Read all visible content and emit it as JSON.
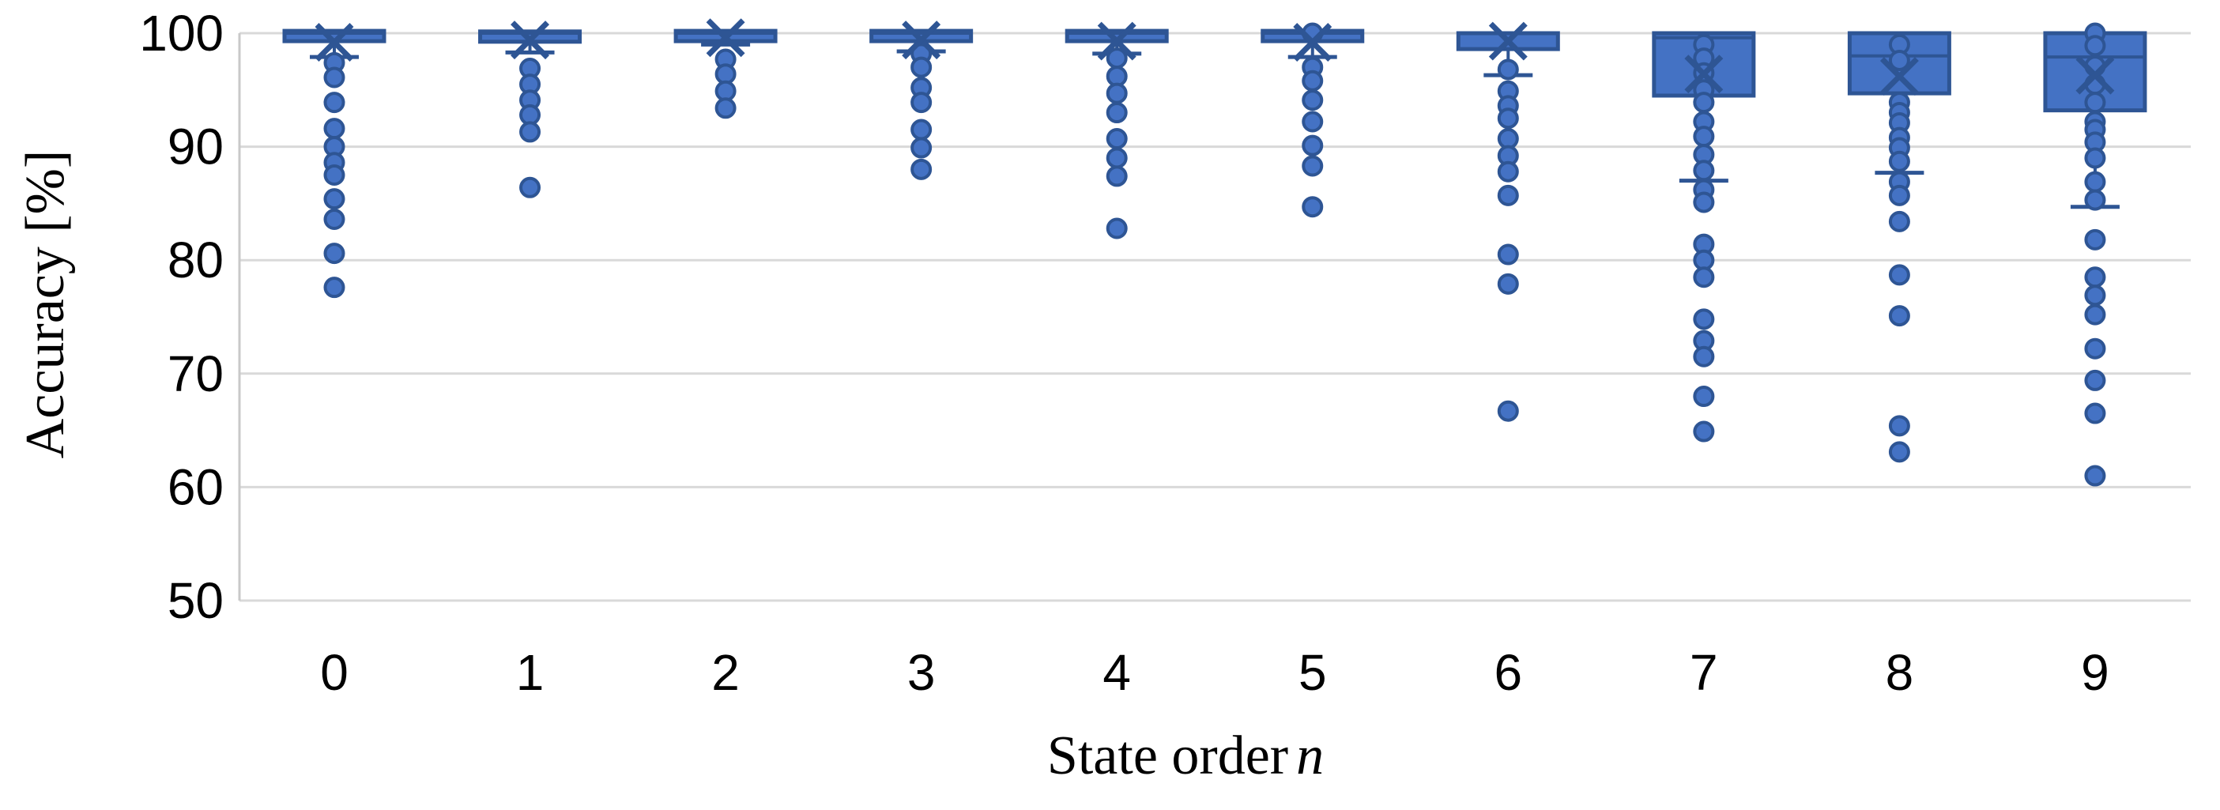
{
  "chart_data": {
    "type": "boxplot",
    "title": "",
    "xlabel": "State order",
    "xlabel_variable": "n",
    "ylabel": "Accuracy [%]",
    "ylim": [
      50,
      100
    ],
    "y_ticks": [
      50,
      60,
      70,
      80,
      90,
      100
    ],
    "grid": "horizontal",
    "legend": "none",
    "colors": {
      "box_fill": "#4472C4",
      "box_edge": "#2E5594",
      "gridline": "#D9D9D9",
      "axis_line": "#C9C9C9",
      "text": "#000000"
    },
    "categories": [
      {
        "n": "0",
        "q1": 99.5,
        "median": 100,
        "q3": 100,
        "mean": 99.2,
        "whisker_low": 97.9,
        "whisker_high": 100,
        "outliers": [
          97.4,
          96.1,
          93.9,
          91.6,
          90.0,
          88.6,
          87.5,
          85.4,
          83.6,
          80.6,
          77.6
        ]
      },
      {
        "n": "1",
        "q1": 99.4,
        "median": 100,
        "q3": 100,
        "mean": 99.4,
        "whisker_low": 98.3,
        "whisker_high": 100,
        "outliers": [
          96.9,
          95.5,
          94.1,
          92.8,
          91.3,
          86.4
        ]
      },
      {
        "n": "2",
        "q1": 99.5,
        "median": 100,
        "q3": 100,
        "mean": 99.6,
        "whisker_low": 99.0,
        "whisker_high": 100,
        "outliers": [
          97.7,
          96.4,
          94.9,
          93.4
        ]
      },
      {
        "n": "3",
        "q1": 99.5,
        "median": 100,
        "q3": 100,
        "mean": 99.4,
        "whisker_low": 98.4,
        "whisker_high": 100,
        "outliers": [
          98.2,
          97.0,
          95.2,
          93.9,
          91.5,
          89.9,
          88.0
        ]
      },
      {
        "n": "4",
        "q1": 99.5,
        "median": 100,
        "q3": 100,
        "mean": 99.3,
        "whisker_low": 98.2,
        "whisker_high": 100,
        "outliers": [
          97.8,
          96.2,
          94.7,
          93.0,
          90.7,
          89.0,
          87.4,
          82.8
        ]
      },
      {
        "n": "5",
        "q1": 99.5,
        "median": 100,
        "q3": 100,
        "mean": 99.2,
        "whisker_low": 97.9,
        "whisker_high": 100,
        "outliers": [
          100,
          97.0,
          95.8,
          94.1,
          92.2,
          90.1,
          88.3,
          84.7
        ]
      },
      {
        "n": "6",
        "q1": 98.6,
        "median": 100,
        "q3": 100,
        "mean": 99.3,
        "whisker_low": 96.3,
        "whisker_high": 100,
        "outliers": [
          96.8,
          94.9,
          93.6,
          92.5,
          90.7,
          89.2,
          87.8,
          85.7,
          80.5,
          77.9,
          66.7
        ]
      },
      {
        "n": "7",
        "q1": 94.5,
        "median": 99.6,
        "q3": 100,
        "mean": 96.4,
        "whisker_low": 87.0,
        "whisker_high": 100,
        "outliers": [
          99.0,
          97.8,
          96.5,
          95.0,
          93.9,
          92.2,
          90.9,
          89.3,
          87.9,
          86.2,
          85.1,
          81.4,
          80.0,
          78.5,
          74.8,
          72.9,
          71.5,
          68.0,
          64.9
        ]
      },
      {
        "n": "8",
        "q1": 94.7,
        "median": 98.0,
        "q3": 100,
        "mean": 96.2,
        "whisker_low": 87.7,
        "whisker_high": 100,
        "outliers": [
          99.0,
          97.6,
          93.9,
          93.0,
          92.1,
          90.8,
          89.9,
          88.7,
          86.9,
          85.7,
          83.4,
          78.7,
          75.1,
          65.4,
          63.1
        ]
      },
      {
        "n": "9",
        "q1": 93.2,
        "median": 97.9,
        "q3": 100,
        "mean": 96.3,
        "whisker_low": 84.7,
        "whisker_high": 100,
        "outliers": [
          100,
          98.9,
          97.1,
          95.5,
          93.9,
          92.2,
          91.5,
          90.4,
          89.0,
          86.9,
          85.3,
          81.8,
          78.5,
          76.9,
          75.2,
          72.2,
          69.4,
          66.5,
          61.0
        ]
      }
    ]
  }
}
